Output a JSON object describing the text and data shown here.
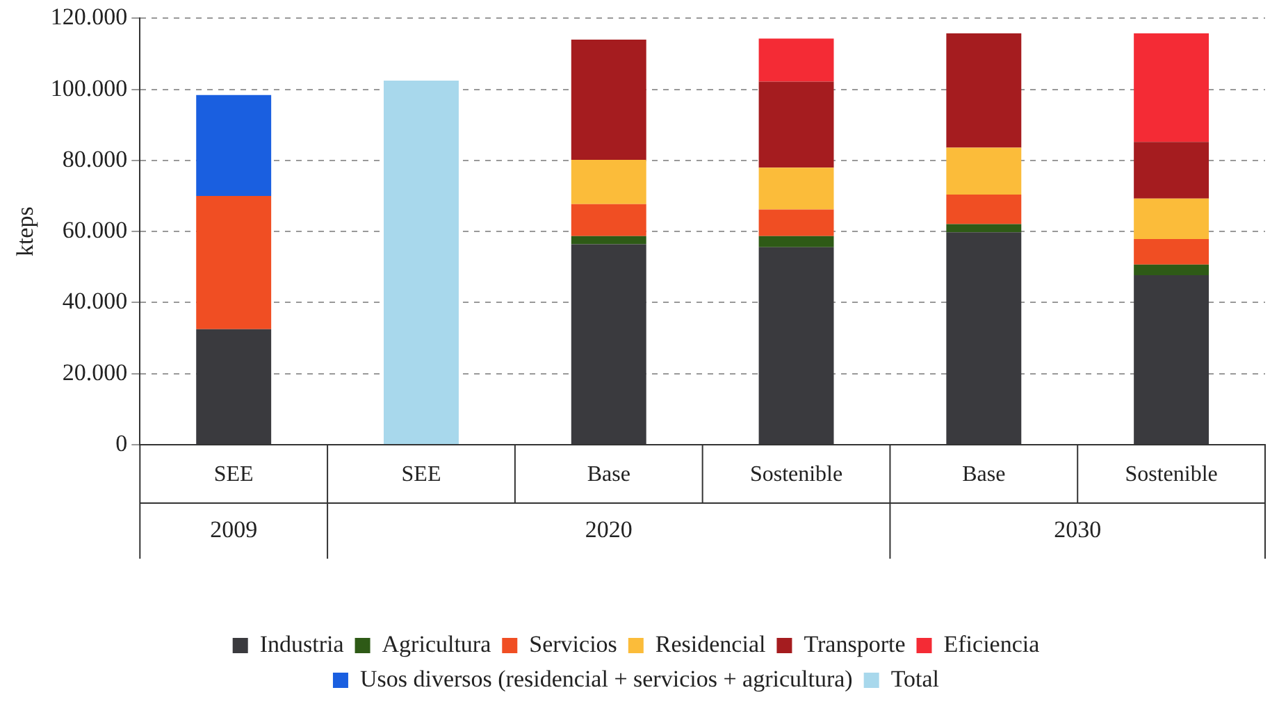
{
  "chart_data": {
    "type": "bar",
    "stacked": true,
    "ylabel": "kteps",
    "categories": [
      "SEE",
      "SEE",
      "Base",
      "Sostenible",
      "Base",
      "Sostenible"
    ],
    "annotations": [
      "2009",
      "2020",
      "2030"
    ],
    "series": [
      {
        "name": "Industria",
        "color": "#3a3a3e",
        "values": [
          32500,
          null,
          56400,
          55600,
          59800,
          47700
        ]
      },
      {
        "name": "Agricultura",
        "color": "#2e5a16",
        "values": [
          null,
          null,
          2300,
          3100,
          2300,
          3000
        ]
      },
      {
        "name": "Servicios",
        "color": "#f04e23",
        "values": [
          37500,
          null,
          9000,
          7500,
          8300,
          7200
        ]
      },
      {
        "name": "Residencial",
        "color": "#fbbc3a",
        "values": [
          null,
          null,
          12500,
          11800,
          13200,
          11400
        ]
      },
      {
        "name": "Transporte",
        "color": "#a51c1f",
        "values": [
          null,
          null,
          33800,
          24200,
          32200,
          15900
        ]
      },
      {
        "name": "Eficiencia",
        "color": "#f42b35",
        "values": [
          null,
          null,
          null,
          12100,
          null,
          30600
        ]
      },
      {
        "name": "Usos diversos (residencial + servicios + agricultura)",
        "color": "#1a5fe0",
        "values": [
          28400,
          null,
          null,
          null,
          null,
          null
        ]
      },
      {
        "name": "Total",
        "color": "#a8d8ec",
        "values": [
          null,
          102500,
          null,
          null,
          null,
          null
        ]
      }
    ],
    "ylim": [
      0,
      120000
    ],
    "yticks": [
      {
        "value": 0,
        "label": "0"
      },
      {
        "value": 20000,
        "label": "20.000"
      },
      {
        "value": 40000,
        "label": "40.000"
      },
      {
        "value": 60000,
        "label": "60.000"
      },
      {
        "value": 80000,
        "label": "80.000"
      },
      {
        "value": 100000,
        "label": "100.000"
      },
      {
        "value": 120000,
        "label": "120.000"
      }
    ],
    "grid": "y",
    "legend": "bottom"
  }
}
